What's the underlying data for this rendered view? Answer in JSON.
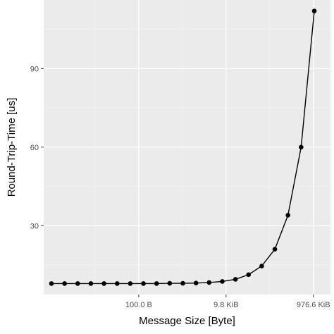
{
  "chart_data": {
    "type": "line",
    "xlabel": "Message Size [Byte]",
    "ylabel": "Round-Trip-Time [us]",
    "x_scale": "log2",
    "x_unit": "bytes",
    "x": [
      1,
      2,
      4,
      8,
      16,
      32,
      64,
      128,
      256,
      512,
      1024,
      2048,
      4096,
      8192,
      16384,
      32768,
      65536,
      131072,
      262144,
      524288,
      1048576
    ],
    "y": [
      7.9,
      7.9,
      7.9,
      7.9,
      7.9,
      7.9,
      7.9,
      7.9,
      7.9,
      8.0,
      8.0,
      8.1,
      8.3,
      8.7,
      9.5,
      11.3,
      14.6,
      21.0,
      34.0,
      60.0,
      112.0
    ],
    "xticks": [
      {
        "value": 100,
        "label": "100.0 B"
      },
      {
        "value": 10000,
        "label": "9.8 KiB"
      },
      {
        "value": 1000000,
        "label": "976.6 KiB"
      }
    ],
    "yticks": [
      30,
      60,
      90
    ],
    "ylim": [
      3.7,
      116.2
    ],
    "grid": true,
    "colors": {
      "panel_background": "#ebebeb",
      "grid_major": "#ffffff",
      "grid_minor": "#f5f5f5",
      "series": "#000000",
      "tick": "#333333"
    }
  }
}
